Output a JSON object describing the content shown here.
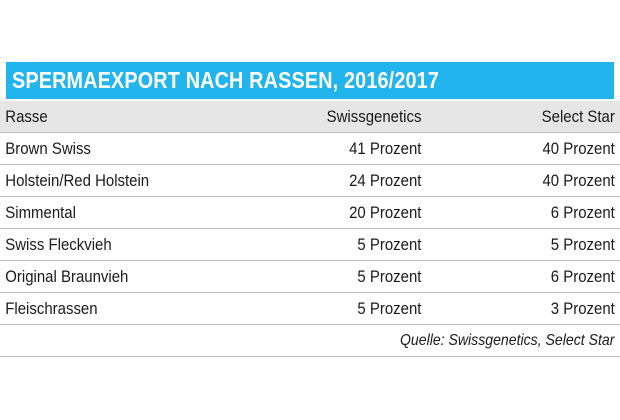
{
  "chart_data": {
    "type": "table",
    "title": "SPERMAEXPORT NACH RASSEN, 2016/2017",
    "columns": [
      "Rasse",
      "Swissgenetics",
      "Select Star"
    ],
    "rows": [
      [
        "Brown Swiss",
        "41 Prozent",
        "40 Prozent"
      ],
      [
        "Holstein/Red Holstein",
        "24 Prozent",
        "40 Prozent"
      ],
      [
        "Simmental",
        "20 Prozent",
        "6 Prozent"
      ],
      [
        "Swiss Fleckvieh",
        "5 Prozent",
        "5 Prozent"
      ],
      [
        "Original Braunvieh",
        "5 Prozent",
        "6 Prozent"
      ],
      [
        "Fleischrassen",
        "5 Prozent",
        "3 Prozent"
      ]
    ],
    "series": [
      {
        "name": "Swissgenetics",
        "values": [
          41,
          24,
          20,
          5,
          5,
          5
        ]
      },
      {
        "name": "Select Star",
        "values": [
          40,
          40,
          6,
          5,
          6,
          3
        ]
      }
    ],
    "unit": "Prozent",
    "source": "Quelle: Swissgenetics, Select Star"
  },
  "colors": {
    "title_bar": "#22b4ec",
    "header_bg": "#e6e6e6",
    "row_line": "#bfbfbf"
  }
}
